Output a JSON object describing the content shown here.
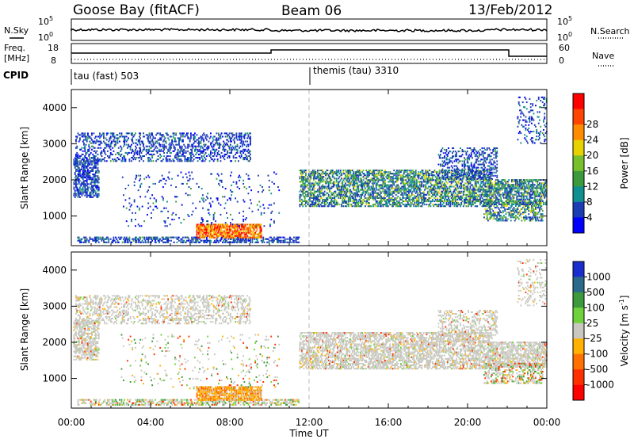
{
  "header": {
    "station": "Goose Bay (fitACF)",
    "beam": "Beam 06",
    "date": "13/Feb/2012"
  },
  "panels": {
    "nsky": {
      "left_label": "N.Sky",
      "right_label": "N.Search",
      "left_ticks": [
        "10^5",
        "10^0"
      ],
      "right_ticks": [
        "10^5",
        "10^0"
      ]
    },
    "freq": {
      "left_label_1": "Freq.",
      "left_label_2": "[MHz]",
      "right_label": "Nave",
      "left_ticks": [
        "18",
        "8"
      ],
      "right_ticks": [
        "60",
        "0"
      ]
    },
    "cpid": {
      "label": "CPID",
      "segments": [
        {
          "label": "tau (fast) 503",
          "start_hour": 0
        },
        {
          "label": "themis (tau) 3310",
          "start_hour": 12
        }
      ]
    }
  },
  "chart_data": [
    {
      "type": "heatmap",
      "title": "",
      "quantity": "Power",
      "xlabel": "",
      "ylabel": "Slant Range [km]",
      "xlim": [
        0,
        24
      ],
      "ylim": [
        180,
        4500
      ],
      "x_ticks": [
        0,
        4,
        8,
        12,
        16,
        20,
        24
      ],
      "y_ticks": [
        1000,
        2000,
        3000,
        4000
      ],
      "colorbar": {
        "label": "Power [dB]",
        "ticks": [
          "4",
          "8",
          "12",
          "16",
          "20",
          "24",
          "28"
        ],
        "colors": [
          "#0000ff",
          "#1c3cb4",
          "#0f8f8f",
          "#3c9a3c",
          "#77c02b",
          "#e6d200",
          "#ff8c00",
          "#ff4500",
          "#ff0000"
        ]
      }
    },
    {
      "type": "heatmap",
      "title": "",
      "quantity": "Velocity",
      "xlabel": "Time UT",
      "ylabel": "Slant Range [km]",
      "xlim": [
        0,
        24
      ],
      "ylim": [
        180,
        4500
      ],
      "x_ticks": [
        0,
        4,
        8,
        12,
        16,
        20,
        24
      ],
      "x_tick_labels": [
        "00:00",
        "04:00",
        "08:00",
        "12:00",
        "16:00",
        "20:00",
        "00:00"
      ],
      "y_ticks": [
        1000,
        2000,
        3000,
        4000
      ],
      "colorbar": {
        "label": "Velocity [m s^-1]",
        "ticks": [
          "1000",
          "500",
          "100",
          "25",
          "-25",
          "-100",
          "-500",
          "-1000"
        ],
        "colors": [
          "#1a2ed0",
          "#2a6a8a",
          "#3c9a3c",
          "#6fd23c",
          "#c8c8c0",
          "#ffb000",
          "#ff7000",
          "#ff3000",
          "#ff0000"
        ]
      }
    }
  ]
}
